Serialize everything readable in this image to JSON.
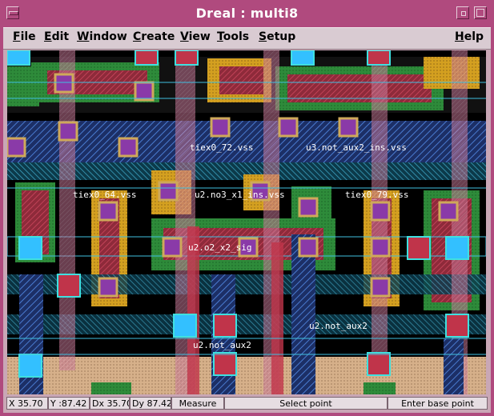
{
  "window": {
    "title": "Dreal : multi8"
  },
  "menubar": {
    "items": [
      {
        "label": "File",
        "underline": "F"
      },
      {
        "label": "Edit",
        "underline": "E"
      },
      {
        "label": "Window",
        "underline": "W"
      },
      {
        "label": "Create",
        "underline": "C"
      },
      {
        "label": "View",
        "underline": "V"
      },
      {
        "label": "Tools",
        "underline": "T"
      },
      {
        "label": "Setup",
        "underline": "S"
      },
      {
        "label": "Help",
        "underline": "H"
      }
    ]
  },
  "layout_labels": [
    "tiex0_72.vss",
    "u3.not_aux2_ins.vss",
    "tiex0_64.vss",
    "u2.no3_x1_ins.vss",
    "tiex0_79.vss",
    "u2.o2_x2_sig",
    "u2.not_aux2",
    "u2.not_aux2"
  ],
  "status": {
    "x": "X 35.70",
    "y": "Y :87.42",
    "dx": "Dx 35.70",
    "dy": "Dy 87.42",
    "mode": "Measure",
    "prompt": "Select point",
    "hint": "Enter base point"
  },
  "colors": {
    "title_bar": "#b04a7e",
    "menu_bg": "#d9cbd2",
    "canvas_bg": "#000000",
    "metal1": "#4a7bd0",
    "poly": "#c0344a",
    "nwell": "#d6b08a",
    "diffusion": "#2e8b3a",
    "contact": "#33c0ff"
  }
}
